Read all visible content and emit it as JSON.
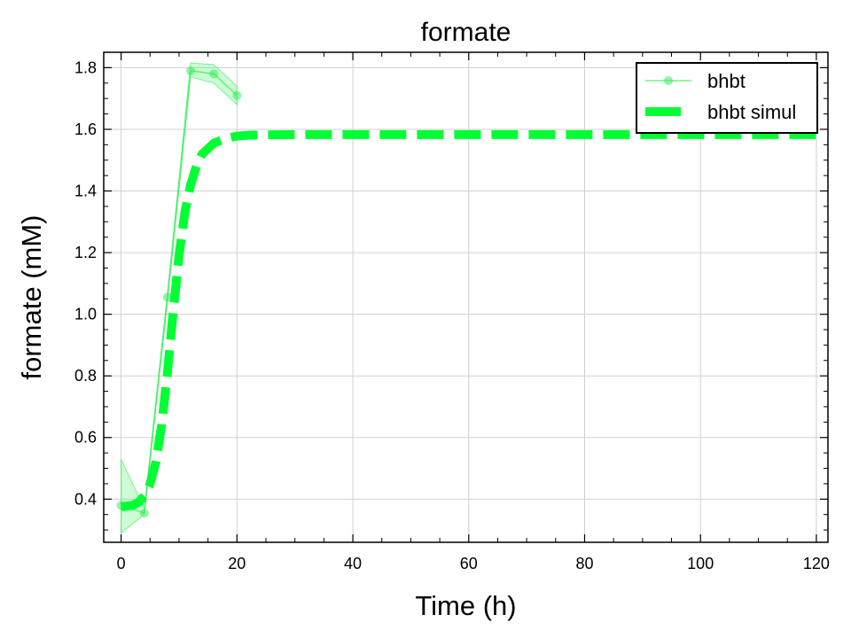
{
  "chart_data": {
    "type": "line",
    "title": "formate",
    "xlabel": "Time (h)",
    "ylabel": "formate (mM)",
    "xlim": [
      -3,
      122
    ],
    "ylim": [
      0.26,
      1.85
    ],
    "grid": true,
    "legend_position": "top-right",
    "x_ticks": [
      0,
      20,
      40,
      60,
      80,
      100,
      120
    ],
    "y_ticks": [
      0.4,
      0.6,
      0.8,
      1.0,
      1.2,
      1.4,
      1.6,
      1.8
    ],
    "x_tick_labels": [
      "0",
      "20",
      "40",
      "60",
      "80",
      "100",
      "120"
    ],
    "y_tick_labels": [
      "0.4",
      "0.6",
      "0.8",
      "1.0",
      "1.2",
      "1.4",
      "1.6",
      "1.8"
    ],
    "series": [
      {
        "name": "bhbt",
        "kind": "measured",
        "color": "#33ee55",
        "x": [
          0,
          4,
          8,
          12,
          16,
          20
        ],
        "y": [
          0.38,
          0.355,
          1.055,
          1.79,
          1.78,
          1.71
        ],
        "band_low": [
          0.29,
          0.35,
          1.04,
          1.77,
          1.75,
          1.68
        ],
        "band_high": [
          0.53,
          0.37,
          1.07,
          1.815,
          1.81,
          1.74
        ]
      },
      {
        "name": "bhbt simul",
        "kind": "simulated",
        "color": "#00ff33",
        "x": [
          0,
          2,
          3,
          4,
          5,
          6,
          7,
          8,
          9,
          10,
          11,
          12,
          13,
          14,
          16,
          18,
          20,
          22,
          25,
          30,
          40,
          60,
          80,
          100,
          120
        ],
        "y": [
          0.375,
          0.38,
          0.39,
          0.41,
          0.45,
          0.52,
          0.64,
          0.81,
          1.01,
          1.19,
          1.33,
          1.42,
          1.48,
          1.52,
          1.555,
          1.57,
          1.578,
          1.581,
          1.582,
          1.583,
          1.583,
          1.583,
          1.583,
          1.583,
          1.583
        ]
      }
    ]
  }
}
